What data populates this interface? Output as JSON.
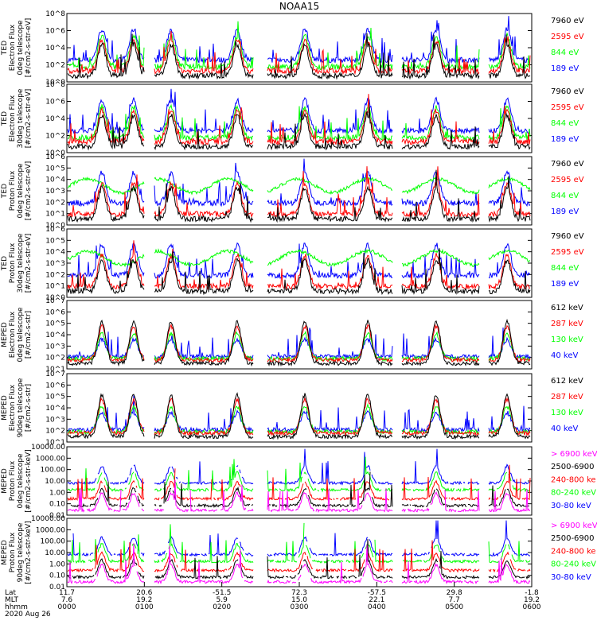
{
  "title": "NOAA15",
  "date_label": "2020 Aug 26",
  "axis_rows": {
    "labels": [
      "Lat",
      "MLT",
      "hhmm"
    ],
    "columns": [
      {
        "lat": "11.7",
        "mlt": "7.6",
        "hhmm": "0000"
      },
      {
        "lat": "20.6",
        "mlt": "19.2",
        "hhmm": "0100"
      },
      {
        "lat": "-51.5",
        "mlt": "5.9",
        "hhmm": "0200"
      },
      {
        "lat": "72.3",
        "mlt": "15.0",
        "hhmm": "0300"
      },
      {
        "lat": "-57.5",
        "mlt": "22.1",
        "hhmm": "0400"
      },
      {
        "lat": "29.8",
        "mlt": "7.7",
        "hhmm": "0500"
      },
      {
        "lat": "-1.8",
        "mlt": "19.2",
        "hhmm": "0600"
      }
    ]
  },
  "colors": {
    "black": "#000000",
    "red": "#ff0000",
    "green": "#00ff00",
    "blue": "#0000ff",
    "magenta": "#ff00ff"
  },
  "chart_data": [
    {
      "type": "line",
      "log_y": true,
      "ylabel": [
        "TED",
        "Electron Flux",
        "0deg telescope",
        "[#/cm2-s-str-eV]"
      ],
      "yticks": [
        "10^0",
        "10^2",
        "10^4",
        "10^6",
        "10^8"
      ],
      "series": [
        {
          "name": "7960 eV",
          "color": "#000000"
        },
        {
          "name": "2595 eV",
          "color": "#ff0000"
        },
        {
          "name": "844 eV",
          "color": "#00ff00"
        },
        {
          "name": "189 eV",
          "color": "#0000ff"
        }
      ]
    },
    {
      "type": "line",
      "log_y": true,
      "ylabel": [
        "TED",
        "Electron Flux",
        "30deg telescope",
        "[#/cm2-s-str-eV]"
      ],
      "yticks": [
        "10^0",
        "10^2",
        "10^4",
        "10^6",
        "10^8"
      ],
      "series": [
        {
          "name": "7960 eV",
          "color": "#000000"
        },
        {
          "name": "2595 eV",
          "color": "#ff0000"
        },
        {
          "name": "844 eV",
          "color": "#00ff00"
        },
        {
          "name": "189 eV",
          "color": "#0000ff"
        }
      ]
    },
    {
      "type": "line",
      "log_y": true,
      "ylabel": [
        "TED",
        "Proton Flux",
        "0deg telescope",
        "[#/cm2-s-str-eV]"
      ],
      "yticks": [
        "10^0",
        "10^1",
        "10^2",
        "10^3",
        "10^4",
        "10^5",
        "10^6"
      ],
      "series": [
        {
          "name": "7960 eV",
          "color": "#000000"
        },
        {
          "name": "2595 eV",
          "color": "#ff0000"
        },
        {
          "name": "844 eV",
          "color": "#00ff00"
        },
        {
          "name": "189 eV",
          "color": "#0000ff"
        }
      ]
    },
    {
      "type": "line",
      "log_y": true,
      "ylabel": [
        "TED",
        "Proton Flux",
        "30deg telescope",
        "[#/cm2-s-str-eV]"
      ],
      "yticks": [
        "10^0",
        "10^1",
        "10^2",
        "10^3",
        "10^4",
        "10^5",
        "10^6"
      ],
      "series": [
        {
          "name": "7960 eV",
          "color": "#000000"
        },
        {
          "name": "2595 eV",
          "color": "#ff0000"
        },
        {
          "name": "844 eV",
          "color": "#00ff00"
        },
        {
          "name": "189 eV",
          "color": "#0000ff"
        }
      ]
    },
    {
      "type": "line",
      "log_y": true,
      "ylabel": [
        "MEPED",
        "Electron Flux",
        "0deg telescope",
        "[#/cm2-s-str]"
      ],
      "yticks": [
        "10^1",
        "10^2",
        "10^3",
        "10^4",
        "10^5",
        "10^6",
        "10^7"
      ],
      "series": [
        {
          "name": "612 keV",
          "color": "#000000"
        },
        {
          "name": "287 keV",
          "color": "#ff0000"
        },
        {
          "name": "130 keV",
          "color": "#00ff00"
        },
        {
          "name": "40 keV",
          "color": "#0000ff"
        }
      ]
    },
    {
      "type": "line",
      "log_y": true,
      "ylabel": [
        "MEPED",
        "Electron Flux",
        "90deg telescope",
        "[#/cm2-s-str]"
      ],
      "yticks": [
        "10^1",
        "10^2",
        "10^3",
        "10^4",
        "10^5",
        "10^6",
        "10^7"
      ],
      "series": [
        {
          "name": "612 keV",
          "color": "#000000"
        },
        {
          "name": "287 keV",
          "color": "#ff0000"
        },
        {
          "name": "130 keV",
          "color": "#00ff00"
        },
        {
          "name": "40 keV",
          "color": "#0000ff"
        }
      ]
    },
    {
      "type": "line",
      "log_y": true,
      "ylabel": [
        "MEPED",
        "Proton Flux",
        "0deg telescope",
        "[#/cm2-s-str-keV]"
      ],
      "yticks": [
        "0.01",
        "0.10",
        "1.00",
        "10.00",
        "100.00",
        "1000.00",
        "10000.00"
      ],
      "series": [
        {
          "name": "> 6900 keV",
          "color": "#ff00ff"
        },
        {
          "name": "2500-6900",
          "color": "#000000"
        },
        {
          "name": "240-800 ke",
          "color": "#ff0000"
        },
        {
          "name": "80-240 keV",
          "color": "#00ff00"
        },
        {
          "name": "30-80 keV",
          "color": "#0000ff"
        }
      ]
    },
    {
      "type": "line",
      "log_y": true,
      "ylabel": [
        "MEPED",
        "Proton Flux",
        "90deg telescope",
        "[#/cm2-s-str-keV]"
      ],
      "yticks": [
        "0.01",
        "0.10",
        "1.00",
        "10.00",
        "100.00",
        "1000.00",
        "10000.00"
      ],
      "series": [
        {
          "name": "> 6900 keV",
          "color": "#ff00ff"
        },
        {
          "name": "2500-6900",
          "color": "#000000"
        },
        {
          "name": "240-800 ke",
          "color": "#ff0000"
        },
        {
          "name": "80-240 keV",
          "color": "#00ff00"
        },
        {
          "name": "30-80 keV",
          "color": "#0000ff"
        }
      ]
    }
  ]
}
